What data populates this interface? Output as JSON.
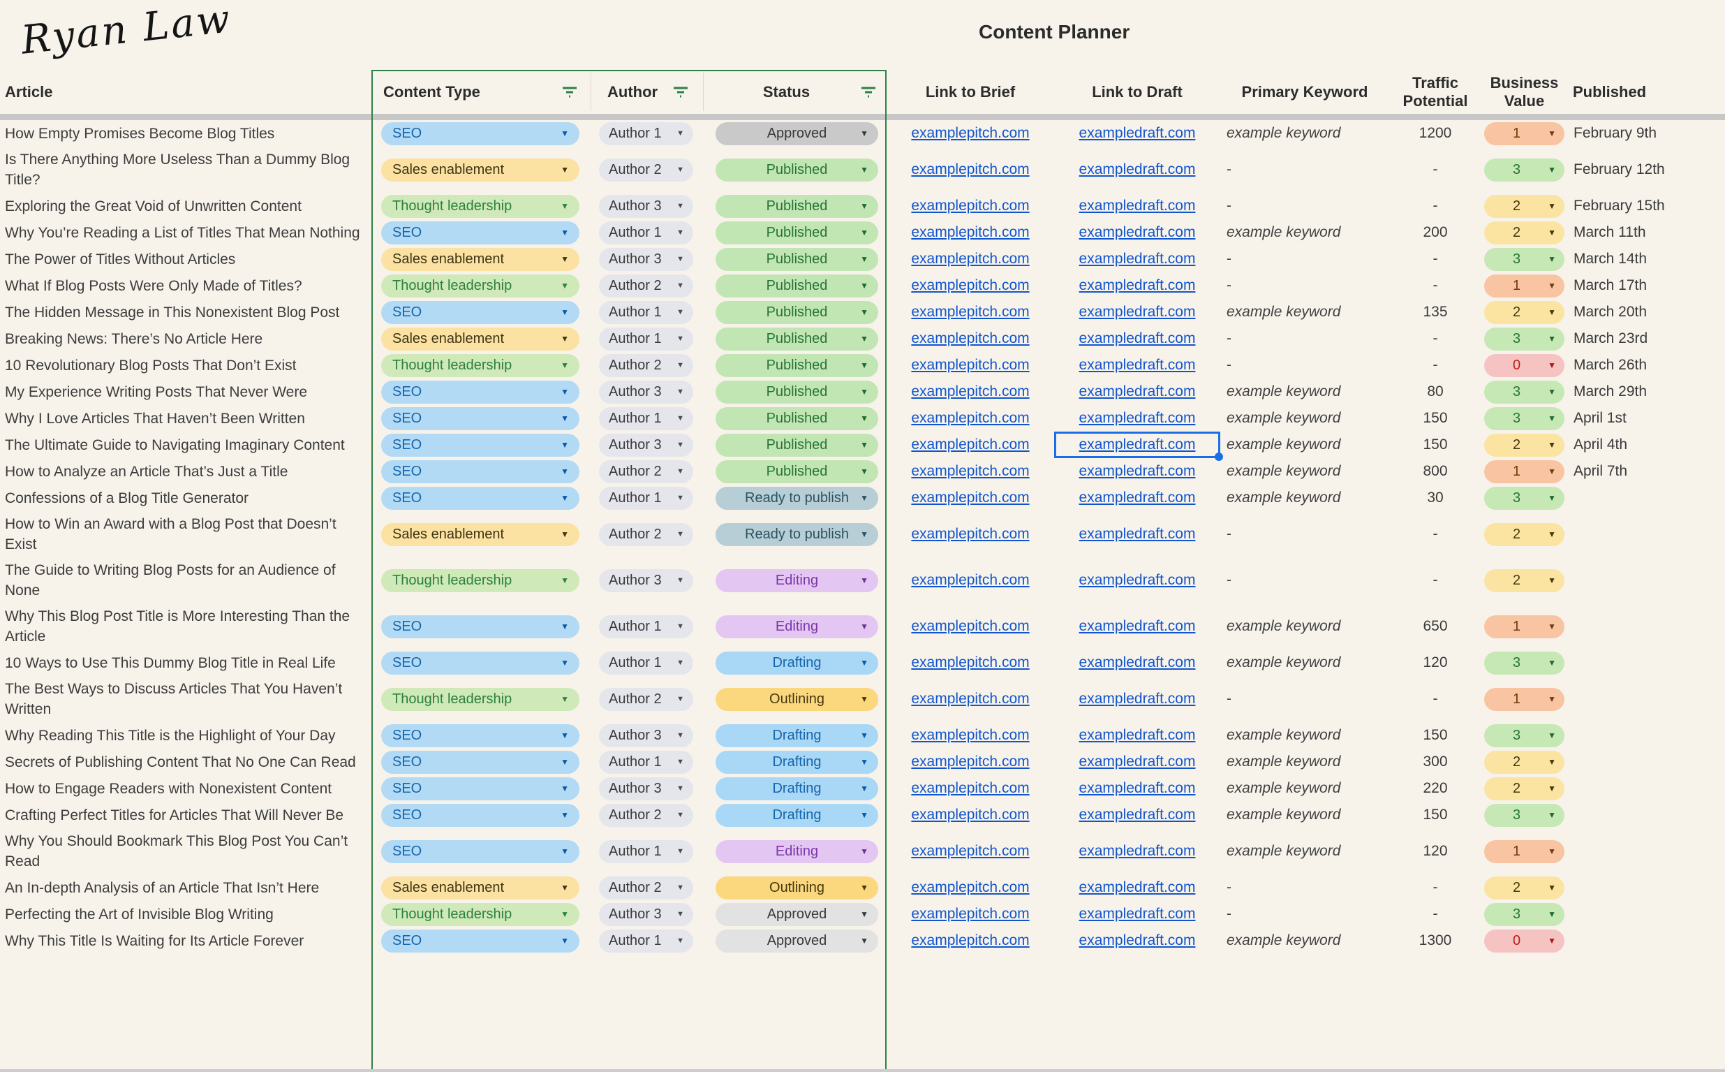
{
  "brand": {
    "logo_text": "Ryan Law"
  },
  "title": "Content Planner",
  "columns": {
    "article": "Article",
    "content_type": "Content Type",
    "author": "Author",
    "status": "Status",
    "brief": "Link to Brief",
    "draft": "Link to Draft",
    "keyword": "Primary Keyword",
    "traffic": "Traffic Potential",
    "business": "Business Value",
    "published": "Published"
  },
  "icons": {
    "filter": "filter-funnel-icon",
    "dropdown": "chevron-down-icon"
  },
  "colors": {
    "background": "#f7f3eb",
    "filter_range_green": "#2e8048",
    "link_blue": "#1155cc",
    "selection_blue": "#1a6fe8",
    "divider_gray": "#c7c7c7",
    "seo_pill": "#b2daf5",
    "sales_pill": "#fbe2a3",
    "thought_pill": "#cfe9b8",
    "published_pill": "#c2e6b3",
    "ready_pill": "#b7ced7",
    "editing_pill": "#e3c7f2",
    "drafting_pill": "#a9d7f6",
    "outlining_pill": "#fbd87d",
    "approved_pill": "#c9c9c9",
    "bv0_pill": "#f5c3c2",
    "bv1_pill": "#f9c4a1",
    "bv2_pill": "#fbe3a1",
    "bv3_pill": "#c6e8b4"
  },
  "rows": [
    {
      "article": "How Empty Promises Become Blog Titles",
      "type": "SEO",
      "author": "Author 1",
      "status": "Approved",
      "status_shade": "dark",
      "brief": "examplepitch.com",
      "draft": "exampledraft.com",
      "keyword": "example keyword",
      "traffic": "1200",
      "value": 1,
      "published": "February 9th"
    },
    {
      "article": "Is There Anything More Useless Than a Dummy Blog Title?",
      "type": "Sales enablement",
      "author": "Author 2",
      "status": "Published",
      "brief": "examplepitch.com",
      "draft": "exampledraft.com",
      "keyword": "-",
      "traffic": "-",
      "value": 3,
      "published": "February 12th"
    },
    {
      "article": "Exploring the Great Void of Unwritten Content",
      "type": "Thought leadership",
      "author": "Author 3",
      "status": "Published",
      "brief": "examplepitch.com",
      "draft": "exampledraft.com",
      "keyword": "-",
      "traffic": "-",
      "value": 2,
      "published": "February 15th"
    },
    {
      "article": "Why You’re Reading a List of Titles That Mean Nothing",
      "type": "SEO",
      "author": "Author 1",
      "status": "Published",
      "brief": "examplepitch.com",
      "draft": "exampledraft.com",
      "keyword": "example keyword",
      "traffic": "200",
      "value": 2,
      "published": "March 11th"
    },
    {
      "article": "The Power of Titles Without Articles",
      "type": "Sales enablement",
      "author": "Author 3",
      "status": "Published",
      "brief": "examplepitch.com",
      "draft": "exampledraft.com",
      "keyword": "-",
      "traffic": "-",
      "value": 3,
      "published": "March 14th"
    },
    {
      "article": "What If Blog Posts Were Only Made of Titles?",
      "type": "Thought leadership",
      "author": "Author 2",
      "status": "Published",
      "brief": "examplepitch.com",
      "draft": "exampledraft.com",
      "keyword": "-",
      "traffic": "-",
      "value": 1,
      "published": "March 17th"
    },
    {
      "article": "The Hidden Message in This Nonexistent Blog Post",
      "type": "SEO",
      "author": "Author 1",
      "status": "Published",
      "brief": "examplepitch.com",
      "draft": "exampledraft.com",
      "keyword": "example keyword",
      "traffic": "135",
      "value": 2,
      "published": "March 20th"
    },
    {
      "article": "Breaking News: There’s No Article Here",
      "type": "Sales enablement",
      "author": "Author 1",
      "status": "Published",
      "brief": "examplepitch.com",
      "draft": "exampledraft.com",
      "keyword": "-",
      "traffic": "-",
      "value": 3,
      "published": "March 23rd"
    },
    {
      "article": "10 Revolutionary Blog Posts That Don’t Exist",
      "type": "Thought leadership",
      "author": "Author 2",
      "status": "Published",
      "brief": "examplepitch.com",
      "draft": "exampledraft.com",
      "keyword": "-",
      "traffic": "-",
      "value": 0,
      "published": "March 26th"
    },
    {
      "article": "My Experience Writing Posts That Never Were",
      "type": "SEO",
      "author": "Author 3",
      "status": "Published",
      "brief": "examplepitch.com",
      "draft": "exampledraft.com",
      "keyword": "example keyword",
      "traffic": "80",
      "value": 3,
      "published": "March 29th"
    },
    {
      "article": "Why I Love Articles That Haven’t Been Written",
      "type": "SEO",
      "author": "Author 1",
      "status": "Published",
      "brief": "examplepitch.com",
      "draft": "exampledraft.com",
      "keyword": "example keyword",
      "traffic": "150",
      "value": 3,
      "published": "April 1st"
    },
    {
      "article": "The Ultimate Guide to Navigating Imaginary Content",
      "type": "SEO",
      "author": "Author 3",
      "status": "Published",
      "brief": "examplepitch.com",
      "draft": "exampledraft.com",
      "keyword": "example keyword",
      "traffic": "150",
      "value": 2,
      "published": "April 4th",
      "selected": true
    },
    {
      "article": "How to Analyze an Article That’s Just a Title",
      "type": "SEO",
      "author": "Author 2",
      "status": "Published",
      "brief": "examplepitch.com",
      "draft": "exampledraft.com",
      "keyword": "example keyword",
      "traffic": "800",
      "value": 1,
      "published": "April 7th"
    },
    {
      "article": "Confessions of a Blog Title Generator",
      "type": "SEO",
      "author": "Author 1",
      "status": "Ready to publish",
      "brief": "examplepitch.com",
      "draft": "exampledraft.com",
      "keyword": "example keyword",
      "traffic": "30",
      "value": 3,
      "published": ""
    },
    {
      "article": "How to Win an Award with a Blog Post that Doesn’t Exist",
      "type": "Sales enablement",
      "author": "Author 2",
      "status": "Ready to publish",
      "brief": "examplepitch.com",
      "draft": "exampledraft.com",
      "keyword": "-",
      "traffic": "-",
      "value": 2,
      "published": ""
    },
    {
      "article": "The Guide to Writing Blog Posts for an Audience of None",
      "type": "Thought leadership",
      "author": "Author 3",
      "status": "Editing",
      "brief": "examplepitch.com",
      "draft": "exampledraft.com",
      "keyword": "-",
      "traffic": "-",
      "value": 2,
      "published": ""
    },
    {
      "article": "Why This Blog Post Title is More Interesting Than the Article",
      "type": "SEO",
      "author": "Author 1",
      "status": "Editing",
      "brief": "examplepitch.com",
      "draft": "exampledraft.com",
      "keyword": "example keyword",
      "traffic": "650",
      "value": 1,
      "published": ""
    },
    {
      "article": "10 Ways to Use This Dummy Blog Title in Real Life",
      "type": "SEO",
      "author": "Author 1",
      "status": "Drafting",
      "brief": "examplepitch.com",
      "draft": "exampledraft.com",
      "keyword": "example keyword",
      "traffic": "120",
      "value": 3,
      "published": ""
    },
    {
      "article": "The Best Ways to Discuss Articles That You Haven’t Written",
      "type": "Thought leadership",
      "author": "Author 2",
      "status": "Outlining",
      "brief": "examplepitch.com",
      "draft": "exampledraft.com",
      "keyword": "-",
      "traffic": "-",
      "value": 1,
      "published": ""
    },
    {
      "article": "Why Reading This Title is the Highlight of Your Day",
      "type": "SEO",
      "author": "Author 3",
      "status": "Drafting",
      "brief": "examplepitch.com",
      "draft": "exampledraft.com",
      "keyword": "example keyword",
      "traffic": "150",
      "value": 3,
      "published": ""
    },
    {
      "article": "Secrets of Publishing Content That No One Can Read",
      "type": "SEO",
      "author": "Author 1",
      "status": "Drafting",
      "brief": "examplepitch.com",
      "draft": "exampledraft.com",
      "keyword": "example keyword",
      "traffic": "300",
      "value": 2,
      "published": ""
    },
    {
      "article": "How to Engage Readers with Nonexistent Content",
      "type": "SEO",
      "author": "Author 3",
      "status": "Drafting",
      "brief": "examplepitch.com",
      "draft": "exampledraft.com",
      "keyword": "example keyword",
      "traffic": "220",
      "value": 2,
      "published": ""
    },
    {
      "article": "Crafting Perfect Titles for Articles That Will Never Be",
      "type": "SEO",
      "author": "Author 2",
      "status": "Drafting",
      "brief": "examplepitch.com",
      "draft": "exampledraft.com",
      "keyword": "example keyword",
      "traffic": "150",
      "value": 3,
      "published": ""
    },
    {
      "article": "Why You Should Bookmark This Blog Post You Can’t Read",
      "type": "SEO",
      "author": "Author 1",
      "status": "Editing",
      "brief": "examplepitch.com",
      "draft": "exampledraft.com",
      "keyword": "example keyword",
      "traffic": "120",
      "value": 1,
      "published": ""
    },
    {
      "article": "An In-depth Analysis of an Article That Isn’t Here",
      "type": "Sales enablement",
      "author": "Author 2",
      "status": "Outlining",
      "brief": "examplepitch.com",
      "draft": "exampledraft.com",
      "keyword": "-",
      "traffic": "-",
      "value": 2,
      "published": ""
    },
    {
      "article": "Perfecting the Art of Invisible Blog Writing",
      "type": "Thought leadership",
      "author": "Author 3",
      "status": "Approved",
      "status_shade": "light",
      "brief": "examplepitch.com",
      "draft": "exampledraft.com",
      "keyword": "-",
      "traffic": "-",
      "value": 3,
      "published": ""
    },
    {
      "article": "Why This Title Is Waiting for Its Article Forever",
      "type": "SEO",
      "author": "Author 1",
      "status": "Approved",
      "status_shade": "light",
      "brief": "examplepitch.com",
      "draft": "exampledraft.com",
      "keyword": "example keyword",
      "traffic": "1300",
      "value": 0,
      "published": ""
    }
  ]
}
